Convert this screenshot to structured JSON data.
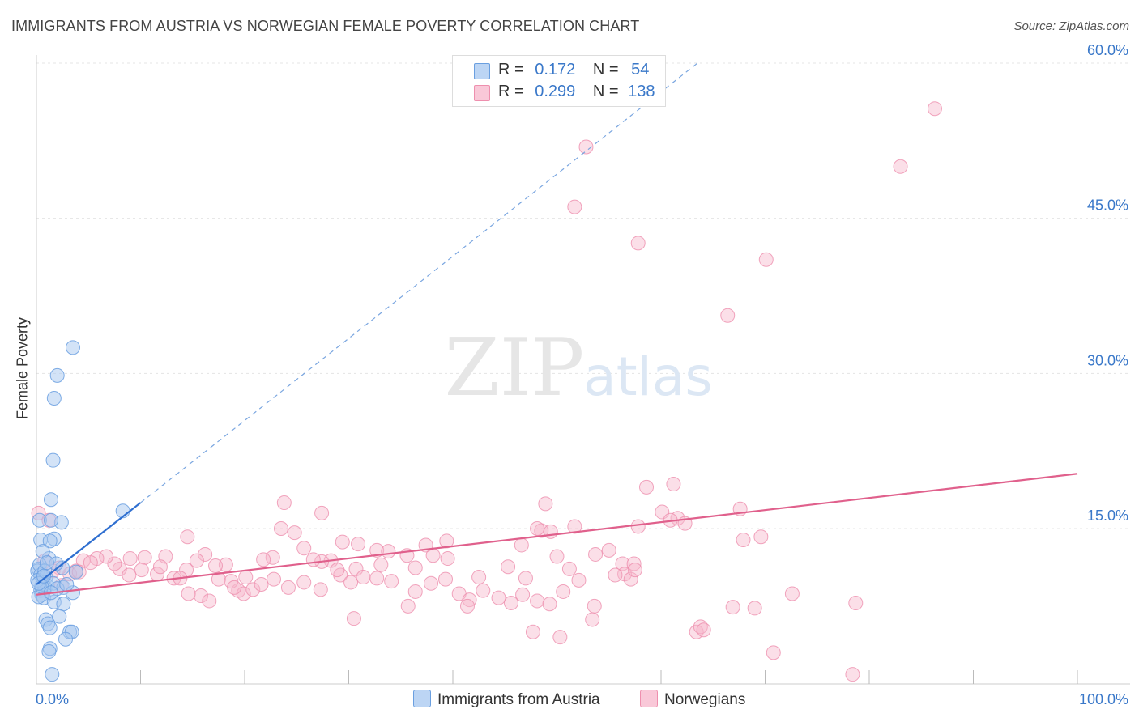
{
  "title": "IMMIGRANTS FROM AUSTRIA VS NORWEGIAN FEMALE POVERTY CORRELATION CHART",
  "source": "Source: ZipAtlas.com",
  "watermark": {
    "zip": "ZIP",
    "atlas": "atlas"
  },
  "legend": {
    "rows": [
      {
        "r_label": "R =",
        "r_value": "0.172",
        "n_label": "N =",
        "n_value": "54"
      },
      {
        "r_label": "R =",
        "r_value": "0.299",
        "n_label": "N =",
        "n_value": "138"
      }
    ]
  },
  "chart_data": {
    "type": "scatter",
    "title": "IMMIGRANTS FROM AUSTRIA VS NORWEGIAN FEMALE POVERTY CORRELATION CHART",
    "ylabel": "Female Poverty",
    "xlabel": "",
    "x_tick_labels": [
      "0.0%",
      "100.0%"
    ],
    "y_tick_labels": [
      "15.0%",
      "30.0%",
      "45.0%",
      "60.0%"
    ],
    "y_tick_values": [
      15,
      30,
      45,
      60
    ],
    "xlim": [
      0,
      100
    ],
    "ylim": [
      0,
      63
    ],
    "grid": true,
    "legend_placement": "top-center",
    "colors": {
      "austria_fill": "#a8c8f0",
      "austria_stroke": "#6a9fe0",
      "austria_line": "#2f6fd0",
      "norway_fill": "#f7b8cc",
      "norway_stroke": "#ee8fae",
      "norway_line": "#e0608c",
      "axis_label_blue": "#3a78c9"
    },
    "series": [
      {
        "name": "Immigrants from Austria",
        "r": 0.172,
        "n": 54,
        "trend": {
          "x0": 0,
          "y0": 9.6,
          "x1": 10,
          "y1": 17.5
        },
        "trend_dashed": {
          "x0": 10,
          "y0": 17.5,
          "x1": 63.5,
          "y1": 60
        },
        "points": [
          [
            3.5,
            32.5
          ],
          [
            2.0,
            29.8
          ],
          [
            1.7,
            27.6
          ],
          [
            1.6,
            21.6
          ],
          [
            1.4,
            17.8
          ],
          [
            8.3,
            16.7
          ],
          [
            0.3,
            15.8
          ],
          [
            2.4,
            15.6
          ],
          [
            1.4,
            15.8
          ],
          [
            0.4,
            13.9
          ],
          [
            1.7,
            14.0
          ],
          [
            1.3,
            13.8
          ],
          [
            0.2,
            11.1
          ],
          [
            0.6,
            10.3
          ],
          [
            1.2,
            12.1
          ],
          [
            2.5,
            11.2
          ],
          [
            0.1,
            10.9
          ],
          [
            0.4,
            10.5
          ],
          [
            0.9,
            10.3
          ],
          [
            0.6,
            9.8
          ],
          [
            1.0,
            9.5
          ],
          [
            0.8,
            9.3
          ],
          [
            1.6,
            9.7
          ],
          [
            2.6,
            9.3
          ],
          [
            0.4,
            9.0
          ],
          [
            0.5,
            8.6
          ],
          [
            0.7,
            8.3
          ],
          [
            0.2,
            8.4
          ],
          [
            1.7,
            7.9
          ],
          [
            2.6,
            7.7
          ],
          [
            3.5,
            8.8
          ],
          [
            3.8,
            10.8
          ],
          [
            2.2,
            6.5
          ],
          [
            0.9,
            6.2
          ],
          [
            1.1,
            5.8
          ],
          [
            1.3,
            5.4
          ],
          [
            3.2,
            5.0
          ],
          [
            3.4,
            5.0
          ],
          [
            2.8,
            4.3
          ],
          [
            1.3,
            3.4
          ],
          [
            1.2,
            3.1
          ],
          [
            1.5,
            0.9
          ],
          [
            0.1,
            10.0
          ],
          [
            0.3,
            11.5
          ],
          [
            1.9,
            11.6
          ],
          [
            0.6,
            12.8
          ],
          [
            2.0,
            9.2
          ],
          [
            0.8,
            10.9
          ],
          [
            1.0,
            11.7
          ],
          [
            0.5,
            9.4
          ],
          [
            1.4,
            8.8
          ],
          [
            2.9,
            9.6
          ],
          [
            0.2,
            9.7
          ],
          [
            0.7,
            10.4
          ]
        ]
      },
      {
        "name": "Norwegians",
        "r": 0.299,
        "n": 138,
        "trend": {
          "x0": 0,
          "y0": 8.6,
          "x1": 100,
          "y1": 20.3
        },
        "points": [
          [
            86.3,
            55.6
          ],
          [
            83.0,
            50.0
          ],
          [
            52.8,
            51.9
          ],
          [
            51.7,
            46.1
          ],
          [
            57.8,
            42.6
          ],
          [
            70.1,
            41.0
          ],
          [
            66.4,
            35.6
          ],
          [
            0.2,
            16.5
          ],
          [
            1.2,
            15.8
          ],
          [
            14.5,
            14.2
          ],
          [
            23.8,
            17.5
          ],
          [
            27.4,
            16.5
          ],
          [
            29.4,
            13.7
          ],
          [
            30.9,
            13.5
          ],
          [
            37.4,
            13.4
          ],
          [
            39.4,
            13.8
          ],
          [
            48.9,
            17.4
          ],
          [
            48.5,
            14.8
          ],
          [
            58.6,
            19.0
          ],
          [
            60.1,
            16.6
          ],
          [
            61.2,
            19.3
          ],
          [
            61.6,
            16.0
          ],
          [
            62.3,
            15.5
          ],
          [
            67.6,
            16.9
          ],
          [
            69.6,
            14.2
          ],
          [
            67.9,
            13.9
          ],
          [
            48.1,
            15.0
          ],
          [
            51.7,
            15.2
          ],
          [
            57.8,
            15.2
          ],
          [
            50.0,
            12.3
          ],
          [
            55.0,
            12.9
          ],
          [
            53.7,
            12.5
          ],
          [
            56.3,
            11.6
          ],
          [
            57.4,
            11.6
          ],
          [
            56.5,
            10.6
          ],
          [
            57.1,
            10.1
          ],
          [
            51.2,
            11.1
          ],
          [
            47.0,
            10.2
          ],
          [
            45.3,
            11.3
          ],
          [
            42.5,
            10.3
          ],
          [
            39.5,
            12.1
          ],
          [
            38.1,
            12.4
          ],
          [
            36.4,
            11.2
          ],
          [
            33.1,
            11.5
          ],
          [
            32.7,
            12.9
          ],
          [
            30.7,
            11.1
          ],
          [
            29.2,
            10.5
          ],
          [
            28.3,
            11.9
          ],
          [
            27.4,
            11.8
          ],
          [
            26.6,
            12.0
          ],
          [
            25.7,
            13.1
          ],
          [
            24.8,
            14.6
          ],
          [
            23.5,
            15.0
          ],
          [
            22.7,
            12.2
          ],
          [
            21.8,
            12.0
          ],
          [
            20.1,
            10.3
          ],
          [
            19.4,
            9.0
          ],
          [
            18.2,
            11.5
          ],
          [
            17.2,
            11.4
          ],
          [
            16.2,
            12.5
          ],
          [
            15.4,
            11.9
          ],
          [
            14.4,
            11.0
          ],
          [
            13.2,
            10.2
          ],
          [
            12.4,
            12.3
          ],
          [
            11.6,
            10.6
          ],
          [
            11.9,
            11.3
          ],
          [
            10.4,
            12.2
          ],
          [
            9.0,
            12.1
          ],
          [
            8.0,
            11.1
          ],
          [
            7.5,
            11.6
          ],
          [
            6.7,
            12.3
          ],
          [
            5.8,
            12.1
          ],
          [
            4.5,
            11.9
          ],
          [
            3.8,
            10.9
          ],
          [
            3.2,
            10.6
          ],
          [
            2.2,
            11.2
          ],
          [
            1.6,
            10.9
          ],
          [
            0.8,
            11.9
          ],
          [
            2.4,
            9.5
          ],
          [
            4.1,
            10.8
          ],
          [
            5.2,
            11.7
          ],
          [
            10.1,
            11.0
          ],
          [
            13.8,
            10.2
          ],
          [
            15.8,
            8.5
          ],
          [
            16.6,
            8.0
          ],
          [
            17.5,
            10.1
          ],
          [
            18.7,
            9.9
          ],
          [
            19.9,
            8.7
          ],
          [
            20.8,
            9.1
          ],
          [
            21.6,
            9.6
          ],
          [
            22.8,
            10.1
          ],
          [
            24.2,
            9.3
          ],
          [
            25.7,
            9.8
          ],
          [
            27.3,
            9.1
          ],
          [
            28.9,
            11.0
          ],
          [
            30.2,
            9.8
          ],
          [
            31.4,
            10.3
          ],
          [
            32.7,
            10.2
          ],
          [
            34.1,
            9.9
          ],
          [
            35.6,
            12.4
          ],
          [
            36.4,
            8.9
          ],
          [
            37.9,
            9.7
          ],
          [
            39.3,
            10.1
          ],
          [
            40.6,
            8.7
          ],
          [
            41.6,
            8.1
          ],
          [
            42.9,
            9.0
          ],
          [
            44.4,
            8.3
          ],
          [
            45.6,
            7.8
          ],
          [
            46.7,
            8.6
          ],
          [
            48.1,
            8.0
          ],
          [
            49.3,
            7.7
          ],
          [
            50.6,
            8.9
          ],
          [
            52.1,
            10.0
          ],
          [
            53.6,
            7.5
          ],
          [
            53.4,
            6.2
          ],
          [
            55.6,
            10.5
          ],
          [
            57.5,
            11.0
          ],
          [
            30.5,
            6.3
          ],
          [
            47.7,
            5.0
          ],
          [
            50.3,
            4.5
          ],
          [
            63.4,
            5.0
          ],
          [
            63.8,
            5.5
          ],
          [
            64.1,
            5.2
          ],
          [
            66.9,
            7.4
          ],
          [
            69.0,
            7.3
          ],
          [
            70.8,
            3.0
          ],
          [
            72.6,
            8.7
          ],
          [
            78.7,
            7.8
          ],
          [
            78.4,
            0.9
          ],
          [
            19.0,
            9.3
          ],
          [
            8.9,
            10.5
          ],
          [
            14.6,
            8.7
          ],
          [
            35.7,
            7.5
          ],
          [
            41.4,
            7.5
          ],
          [
            49.4,
            14.7
          ],
          [
            60.9,
            15.8
          ],
          [
            46.6,
            13.4
          ],
          [
            33.8,
            12.8
          ]
        ]
      }
    ]
  },
  "bottom_legend": [
    {
      "label": "Immigrants from Austria"
    },
    {
      "label": "Norwegians"
    }
  ]
}
